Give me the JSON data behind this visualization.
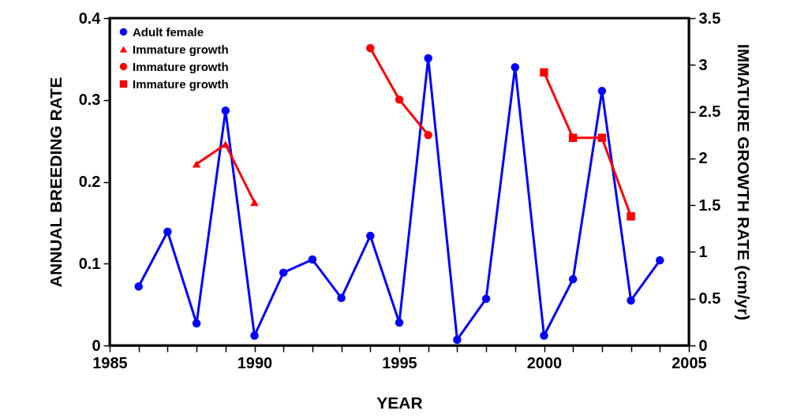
{
  "chart_data": {
    "type": "line",
    "xlabel": "YEAR",
    "ylabel": "ANNUAL BREEDING RATE",
    "y2label": "IMMATURE GROWTH RATE (cm/yr)",
    "xlim": [
      1985,
      2005
    ],
    "xticks": [
      1985,
      {
        "value": 1986,
        "label": null
      },
      {
        "value": 1987,
        "label": null
      },
      {
        "value": 1988,
        "label": null
      },
      {
        "value": 1989,
        "label": null
      },
      1990,
      {
        "value": 1991,
        "label": null
      },
      {
        "value": 1992,
        "label": null
      },
      {
        "value": 1993,
        "label": null
      },
      {
        "value": 1994,
        "label": null
      },
      1995,
      {
        "value": 1996,
        "label": null
      },
      {
        "value": 1997,
        "label": null
      },
      {
        "value": 1998,
        "label": null
      },
      {
        "value": 1999,
        "label": null
      },
      2000,
      {
        "value": 2001,
        "label": null
      },
      {
        "value": 2002,
        "label": null
      },
      {
        "value": 2003,
        "label": null
      },
      {
        "value": 2004,
        "label": null
      },
      2005
    ],
    "ylim": [
      0,
      0.4
    ],
    "yticks": [
      0,
      0.1,
      0.2,
      0.3,
      0.4
    ],
    "y2lim": [
      0,
      3.5
    ],
    "y2ticks": [
      0,
      0.5,
      1,
      1.5,
      2,
      2.5,
      3,
      3.5
    ],
    "grid": false,
    "legend": "top left",
    "line_style": "solid",
    "series": [
      {
        "name": "Adult female",
        "color": "#0000ff",
        "marker": "circle",
        "axis": "y",
        "x": [
          1986,
          1987,
          1988,
          1989,
          1990,
          1991,
          1992,
          1993,
          1994,
          1995,
          1996,
          1997,
          1998,
          1999,
          2000,
          2001,
          2002,
          2003,
          2004
        ],
        "values": [
          0.072,
          0.139,
          0.027,
          0.287,
          0.012,
          0.089,
          0.105,
          0.058,
          0.134,
          0.028,
          0.351,
          0.007,
          0.057,
          0.34,
          0.012,
          0.081,
          0.311,
          0.055,
          0.104
        ]
      },
      {
        "name": "Immature growth",
        "color": "#ff0000",
        "marker": "triangle",
        "axis": "y2",
        "x": [
          1988,
          1989,
          1990
        ],
        "values": [
          1.94,
          2.15,
          1.53
        ]
      },
      {
        "name": "Immature growth",
        "color": "#ff0000",
        "marker": "circle",
        "axis": "y2",
        "x": [
          1994,
          1995,
          1996
        ],
        "values": [
          3.18,
          2.63,
          2.25
        ]
      },
      {
        "name": "Immature growth",
        "color": "#ff0000",
        "marker": "square",
        "axis": "y2",
        "x": [
          2000,
          2001,
          2002,
          2003
        ],
        "values": [
          2.92,
          2.22,
          2.22,
          1.38
        ]
      }
    ]
  }
}
